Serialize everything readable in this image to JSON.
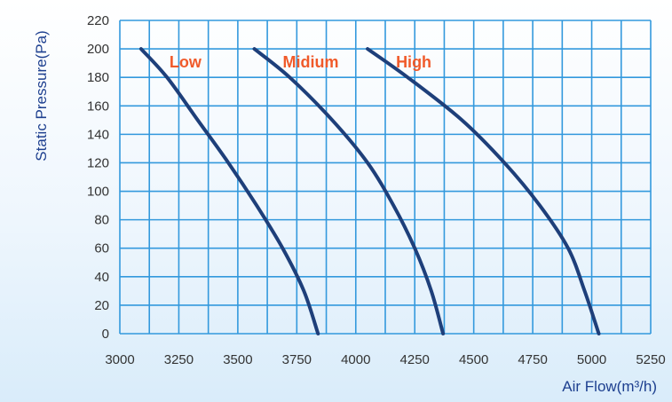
{
  "chart_data": {
    "type": "line",
    "xlabel": "Air Flow(m³/h)",
    "ylabel": "Static Pressure(Pa)",
    "xlim": [
      3000,
      5250
    ],
    "ylim": [
      0,
      220
    ],
    "x_ticks": [
      3000,
      3250,
      3500,
      3750,
      4000,
      4250,
      4500,
      4750,
      5000,
      5250
    ],
    "y_ticks": [
      0,
      20,
      40,
      60,
      80,
      100,
      120,
      140,
      160,
      180,
      200,
      220
    ],
    "grid": true,
    "colors": {
      "curve": "#1e3f7a",
      "grid": "#3399dd",
      "label": "#f05a2a",
      "axis_title": "#1d3f8f"
    },
    "series": [
      {
        "name": "Low",
        "x": [
          3090,
          3200,
          3330,
          3460,
          3580,
          3690,
          3780,
          3840
        ],
        "y": [
          200,
          180,
          150,
          120,
          90,
          60,
          30,
          0
        ]
      },
      {
        "name": "Midium",
        "x": [
          3570,
          3720,
          3900,
          4050,
          4160,
          4250,
          4320,
          4370
        ],
        "y": [
          200,
          180,
          150,
          120,
          90,
          60,
          30,
          0
        ]
      },
      {
        "name": "High",
        "x": [
          4050,
          4220,
          4450,
          4630,
          4780,
          4900,
          4970,
          5030
        ],
        "y": [
          200,
          180,
          150,
          120,
          90,
          60,
          30,
          0
        ]
      }
    ]
  }
}
